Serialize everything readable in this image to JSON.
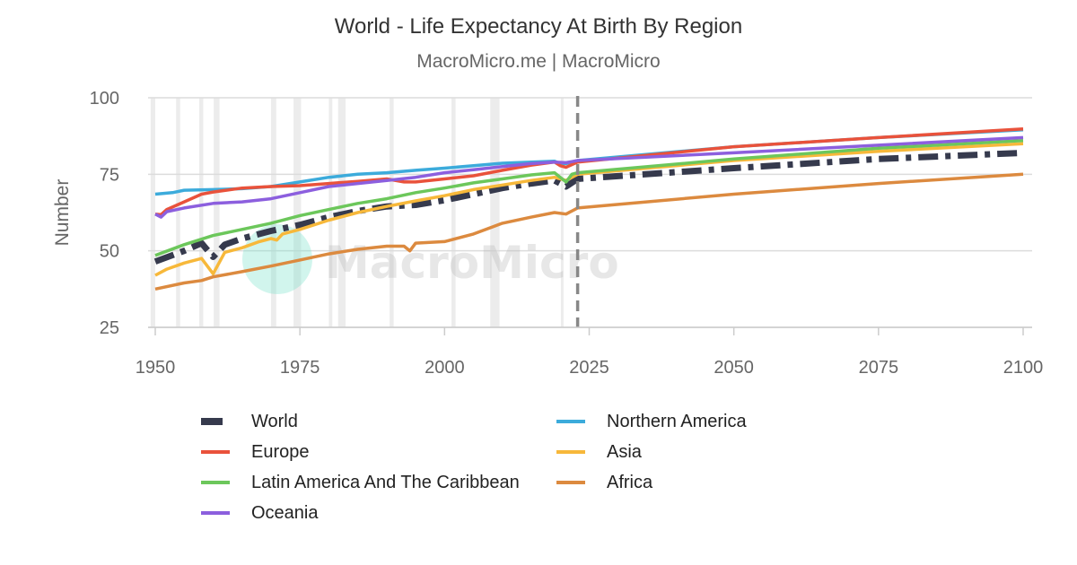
{
  "chart_data": {
    "type": "line",
    "title": "World - Life Expectancy At Birth By Region",
    "subtitle": "MacroMicro.me | MacroMicro",
    "watermark": "MacroMicro",
    "ylabel": "Number",
    "xlabel": "",
    "xlim": [
      1950,
      2100
    ],
    "ylim": [
      25,
      100
    ],
    "x_ticks": [
      "1950",
      "1975",
      "2000",
      "2025",
      "2050",
      "2075",
      "2100"
    ],
    "y_ticks": [
      "25",
      "50",
      "75",
      "100"
    ],
    "grid": true,
    "legend_position": "bottom",
    "forecast_marker_year": 2023,
    "shaded_periods": [
      [
        1949.2,
        1950
      ],
      [
        1953.6,
        1954.3
      ],
      [
        1957.6,
        1958.3
      ],
      [
        1960.1,
        1961.1
      ],
      [
        1970.0,
        1970.9
      ],
      [
        1973.9,
        1975.2
      ],
      [
        1980.0,
        1980.6
      ],
      [
        1981.6,
        1982.9
      ],
      [
        1990.5,
        1991.2
      ],
      [
        2001.2,
        2001.9
      ],
      [
        2007.9,
        2009.5
      ],
      [
        2020.1,
        2020.4
      ]
    ],
    "series": [
      {
        "name": "World",
        "color": "#363a4d",
        "style": "dashdot",
        "points": [
          [
            1950,
            46.5
          ],
          [
            1955,
            50
          ],
          [
            1958,
            52.5
          ],
          [
            1960,
            48
          ],
          [
            1962,
            52
          ],
          [
            1965,
            54
          ],
          [
            1970,
            56.5
          ],
          [
            1975,
            58.5
          ],
          [
            1980,
            61
          ],
          [
            1985,
            63
          ],
          [
            1990,
            64.5
          ],
          [
            1995,
            65
          ],
          [
            2000,
            66.5
          ],
          [
            2005,
            68.5
          ],
          [
            2010,
            70.5
          ],
          [
            2015,
            72
          ],
          [
            2019,
            73
          ],
          [
            2021,
            71
          ],
          [
            2023,
            73.5
          ],
          [
            2050,
            77
          ],
          [
            2075,
            80
          ],
          [
            2100,
            82
          ]
        ]
      },
      {
        "name": "Northern America",
        "color": "#3cabdb",
        "style": "solid",
        "points": [
          [
            1950,
            68.5
          ],
          [
            1953,
            69
          ],
          [
            1955,
            69.8
          ],
          [
            1960,
            70
          ],
          [
            1965,
            70.3
          ],
          [
            1970,
            71
          ],
          [
            1975,
            72.5
          ],
          [
            1980,
            74
          ],
          [
            1985,
            75
          ],
          [
            1990,
            75.5
          ],
          [
            1995,
            76.3
          ],
          [
            2000,
            77
          ],
          [
            2005,
            77.8
          ],
          [
            2010,
            78.6
          ],
          [
            2015,
            79
          ],
          [
            2019,
            79.3
          ],
          [
            2020,
            78.5
          ],
          [
            2021,
            78.5
          ],
          [
            2023,
            79.5
          ],
          [
            2050,
            84
          ],
          [
            2075,
            87
          ],
          [
            2100,
            89.5
          ]
        ]
      },
      {
        "name": "Europe",
        "color": "#e9523b",
        "style": "solid",
        "points": [
          [
            1950,
            62
          ],
          [
            1951,
            61.8
          ],
          [
            1952,
            63.5
          ],
          [
            1955,
            66
          ],
          [
            1958,
            68.5
          ],
          [
            1960,
            69.2
          ],
          [
            1965,
            70.5
          ],
          [
            1970,
            71
          ],
          [
            1975,
            71.3
          ],
          [
            1980,
            72
          ],
          [
            1985,
            72.7
          ],
          [
            1990,
            73.5
          ],
          [
            1993,
            72.5
          ],
          [
            1995,
            72.5
          ],
          [
            2000,
            73.5
          ],
          [
            2005,
            74.5
          ],
          [
            2010,
            76.3
          ],
          [
            2015,
            78
          ],
          [
            2019,
            79
          ],
          [
            2020,
            77.8
          ],
          [
            2021,
            77.3
          ],
          [
            2023,
            79
          ],
          [
            2050,
            84
          ],
          [
            2075,
            87
          ],
          [
            2100,
            89.8
          ]
        ]
      },
      {
        "name": "Asia",
        "color": "#f7b83a",
        "style": "solid",
        "points": [
          [
            1950,
            42
          ],
          [
            1952,
            44
          ],
          [
            1955,
            46
          ],
          [
            1958,
            47.5
          ],
          [
            1960,
            42.5
          ],
          [
            1962,
            49.5
          ],
          [
            1965,
            51
          ],
          [
            1968,
            53
          ],
          [
            1970,
            54
          ],
          [
            1971,
            53.5
          ],
          [
            1972,
            55.5
          ],
          [
            1975,
            57
          ],
          [
            1980,
            60
          ],
          [
            1985,
            62.5
          ],
          [
            1990,
            64.5
          ],
          [
            1995,
            66.3
          ],
          [
            2000,
            68
          ],
          [
            2005,
            70
          ],
          [
            2010,
            71.5
          ],
          [
            2015,
            73
          ],
          [
            2019,
            74
          ],
          [
            2021,
            73
          ],
          [
            2023,
            75
          ],
          [
            2050,
            79.5
          ],
          [
            2075,
            82.5
          ],
          [
            2100,
            85
          ]
        ]
      },
      {
        "name": "Latin America And The Caribbean",
        "color": "#6cc75b",
        "style": "solid",
        "points": [
          [
            1950,
            48.5
          ],
          [
            1955,
            52
          ],
          [
            1960,
            55
          ],
          [
            1965,
            57
          ],
          [
            1970,
            59
          ],
          [
            1975,
            61.5
          ],
          [
            1980,
            63.5
          ],
          [
            1985,
            65.5
          ],
          [
            1990,
            67
          ],
          [
            1995,
            69
          ],
          [
            2000,
            70.5
          ],
          [
            2005,
            72.2
          ],
          [
            2010,
            73.5
          ],
          [
            2015,
            74.8
          ],
          [
            2019,
            75.5
          ],
          [
            2021,
            72.5
          ],
          [
            2022,
            75
          ],
          [
            2023,
            75.5
          ],
          [
            2050,
            80
          ],
          [
            2075,
            83.5
          ],
          [
            2100,
            86
          ]
        ]
      },
      {
        "name": "Africa",
        "color": "#dc8a3f",
        "style": "solid",
        "points": [
          [
            1950,
            37.5
          ],
          [
            1955,
            39.5
          ],
          [
            1958,
            40.3
          ],
          [
            1960,
            41.5
          ],
          [
            1965,
            43.2
          ],
          [
            1970,
            45
          ],
          [
            1975,
            47
          ],
          [
            1980,
            49
          ],
          [
            1985,
            50.5
          ],
          [
            1990,
            51.5
          ],
          [
            1993,
            51.5
          ],
          [
            1994,
            50
          ],
          [
            1995,
            52.5
          ],
          [
            2000,
            53
          ],
          [
            2005,
            55.5
          ],
          [
            2010,
            59
          ],
          [
            2015,
            61
          ],
          [
            2019,
            62.5
          ],
          [
            2021,
            62
          ],
          [
            2023,
            64
          ],
          [
            2050,
            68.5
          ],
          [
            2075,
            72
          ],
          [
            2100,
            75
          ]
        ]
      },
      {
        "name": "Oceania",
        "color": "#8c5fde",
        "style": "solid",
        "points": [
          [
            1950,
            62
          ],
          [
            1951,
            61
          ],
          [
            1952,
            62.8
          ],
          [
            1955,
            64
          ],
          [
            1960,
            65.5
          ],
          [
            1965,
            66
          ],
          [
            1970,
            67
          ],
          [
            1975,
            69
          ],
          [
            1980,
            71
          ],
          [
            1985,
            72
          ],
          [
            1990,
            73
          ],
          [
            1995,
            74
          ],
          [
            2000,
            75.5
          ],
          [
            2005,
            76.5
          ],
          [
            2010,
            77.5
          ],
          [
            2015,
            78.5
          ],
          [
            2019,
            79
          ],
          [
            2021,
            78.8
          ],
          [
            2023,
            79.5
          ],
          [
            2050,
            82
          ],
          [
            2075,
            84.5
          ],
          [
            2100,
            87
          ]
        ]
      }
    ]
  }
}
